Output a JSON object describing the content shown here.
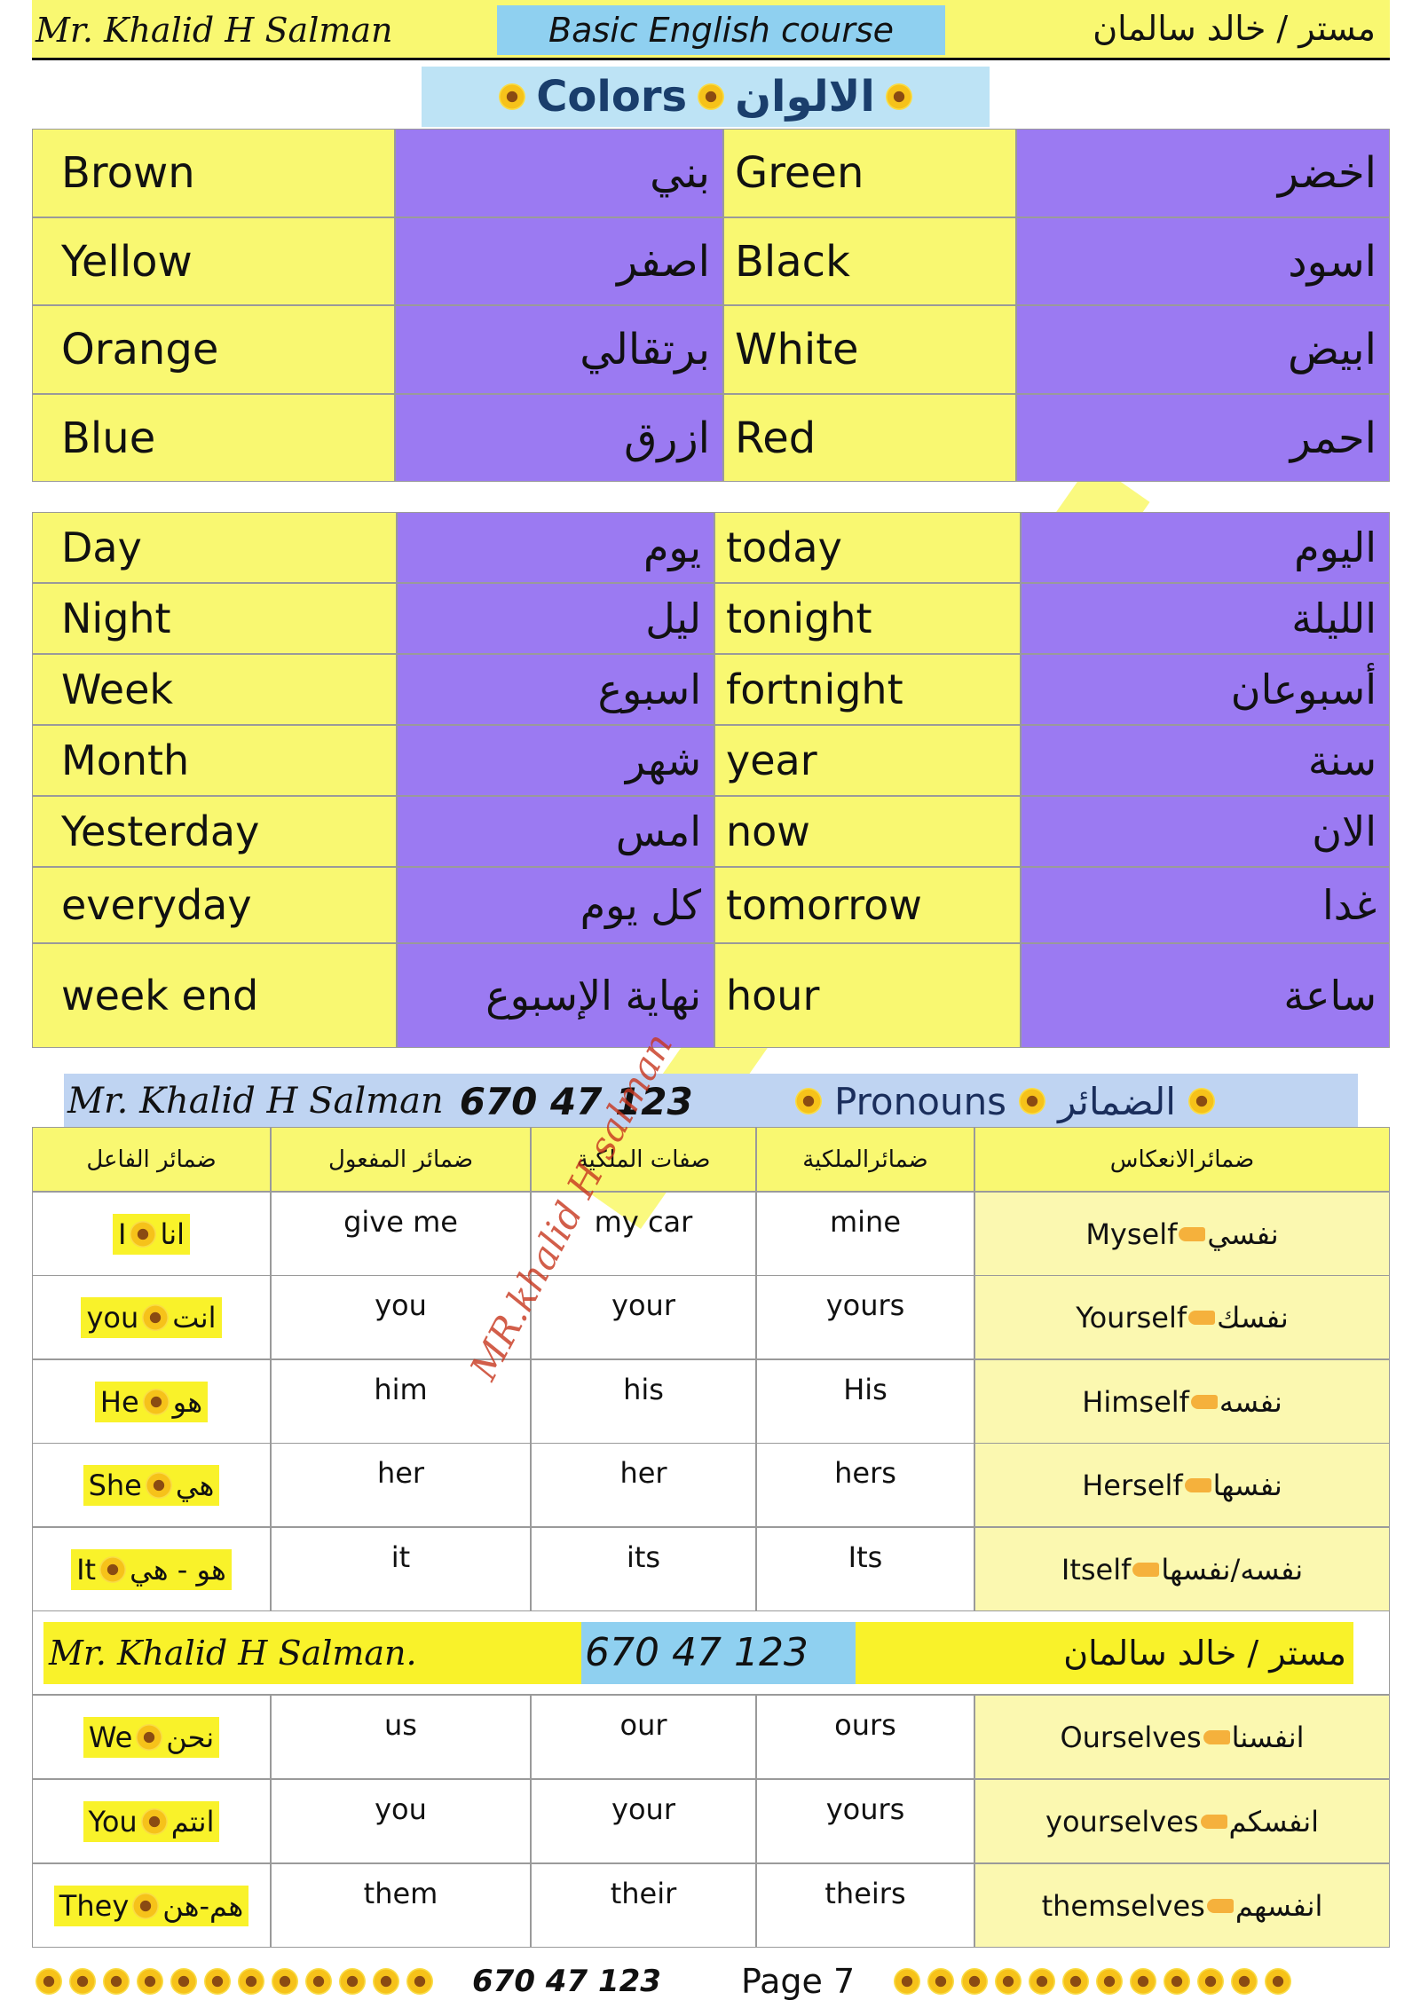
{
  "header": {
    "name": "Mr. Khalid H Salman",
    "course": "Basic English course",
    "name_ar": "مستر / خالد سالمان"
  },
  "colors": {
    "title": "Colors",
    "title_ar": "الالوان",
    "rows": [
      [
        "Brown",
        "بني",
        "Green",
        "اخضر"
      ],
      [
        "Yellow",
        "اصفر",
        "Black",
        "اسود"
      ],
      [
        "Orange",
        "برتقالي",
        "White",
        "ابيض"
      ],
      [
        "Blue",
        "ازرق",
        "Red",
        "احمر"
      ]
    ]
  },
  "time": {
    "rows": [
      [
        "Day",
        "يوم",
        "today",
        "اليوم"
      ],
      [
        "Night",
        "ليل",
        "tonight",
        "الليلة"
      ],
      [
        "Week",
        "اسبوع",
        "fortnight",
        "أسبوعان"
      ],
      [
        "Month",
        "شهر",
        "year",
        "سنة"
      ],
      [
        "Yesterday",
        "امس",
        "now",
        "الان"
      ],
      [
        "everyday",
        "كل يوم",
        "tomorrow",
        "غدا"
      ],
      [
        "week end",
        "نهاية الإسبوع",
        "hour",
        "ساعة"
      ]
    ]
  },
  "pronouns": {
    "name": "Mr. Khalid H Salman",
    "phone": "670 47 123",
    "title": "Pronouns",
    "title_ar": "الضمائر",
    "columns": [
      "ضمائر الفاعل",
      "ضمائر المفعول",
      "صفات الملكية",
      "ضمائرالملكية",
      "ضمائرالانعكاس"
    ],
    "rows_singular": [
      {
        "subject": "I",
        "subject_ar": "انا",
        "object": "give me",
        "possessive_adjective": "my car",
        "possessive_pronoun": "mine",
        "reflexive": "Myself",
        "reflexive_ar": "نفسي"
      },
      {
        "subject": "you",
        "subject_ar": "انت",
        "object": "you",
        "possessive_adjective": "your",
        "possessive_pronoun": "yours",
        "reflexive": "Yourself",
        "reflexive_ar": "نفسك"
      },
      {
        "subject": "He",
        "subject_ar": "هو",
        "object": "him",
        "possessive_adjective": "his",
        "possessive_pronoun": "His",
        "reflexive": "Himself",
        "reflexive_ar": "نفسه"
      },
      {
        "subject": "She",
        "subject_ar": "هي",
        "object": "her",
        "possessive_adjective": "her",
        "possessive_pronoun": "hers",
        "reflexive": "Herself",
        "reflexive_ar": "نفسها"
      },
      {
        "subject": "It",
        "subject_ar": "هو - هي",
        "object": "it",
        "possessive_adjective": "its",
        "possessive_pronoun": "Its",
        "reflexive": "Itself",
        "reflexive_ar": "نفسه/نفسها"
      }
    ],
    "banner": {
      "name": "Mr. Khalid H Salman.",
      "phone": "670 47 123",
      "name_ar": "مستر / خالد سالمان"
    },
    "rows_plural": [
      {
        "subject": "We",
        "subject_ar": "نحن",
        "object": "us",
        "possessive_adjective": "our",
        "possessive_pronoun": "ours",
        "reflexive": "Ourselves",
        "reflexive_ar": "انفسنا"
      },
      {
        "subject": "You",
        "subject_ar": "انتم",
        "object": "you",
        "possessive_adjective": "your",
        "possessive_pronoun": "yours",
        "reflexive": "yourselves",
        "reflexive_ar": "انفسكم"
      },
      {
        "subject": "They",
        "subject_ar": "هم-هن",
        "object": "them",
        "possessive_adjective": "their",
        "possessive_pronoun": "theirs",
        "reflexive": "themselves",
        "reflexive_ar": "انفسهم"
      }
    ]
  },
  "watermark": "MR.khalid H salman",
  "footer": {
    "phone": "670 47 123",
    "page": "Page 7"
  }
}
